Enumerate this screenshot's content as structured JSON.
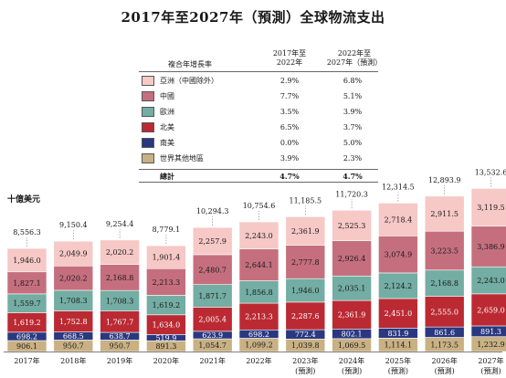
{
  "title": "2017年至2027年（預測）全球物流支出",
  "unit_label": "十億美元",
  "cagr_table": {
    "header_label": "複合年增長率",
    "col1_header": [
      "2017年至",
      "2022年"
    ],
    "col2_header": [
      "2022年至",
      "2027年（預測）"
    ],
    "rows": [
      {
        "label": "亞洲（中國除外）",
        "v1": "2.9%",
        "v2": "6.8%",
        "color": "#f6c8c6"
      },
      {
        "label": "中國",
        "v1": "7.7%",
        "v2": "5.1%",
        "color": "#c56f7e"
      },
      {
        "label": "歐洲",
        "v1": "3.5%",
        "v2": "3.9%",
        "color": "#73ada3"
      },
      {
        "label": "北美",
        "v1": "6.5%",
        "v2": "3.7%",
        "color": "#bb2a33"
      },
      {
        "label": "南美",
        "v1": "0.0%",
        "v2": "5.0%",
        "color": "#2a3880"
      },
      {
        "label": "世界其他地區",
        "v1": "3.9%",
        "v2": "2.3%",
        "color": "#c9b184"
      }
    ],
    "total": {
      "label": "總計",
      "v1": "4.7%",
      "v2": "4.7%"
    }
  },
  "chart_data": {
    "type": "bar",
    "stacked": true,
    "categories": [
      "2017年",
      "2018年",
      "2019年",
      "2020年",
      "2021年",
      "2022年",
      "2023年",
      "2024年",
      "2025年",
      "2026年",
      "2027年"
    ],
    "category_sublabels": [
      "",
      "",
      "",
      "",
      "",
      "",
      "(預測)",
      "(預測)",
      "(預測)",
      "(預測)",
      "(預測)"
    ],
    "totals": [
      8556.3,
      9150.4,
      9254.4,
      8779.1,
      10294.3,
      10754.6,
      11185.5,
      11720.3,
      12314.5,
      12893.9,
      13532.6
    ],
    "totals_labels": [
      "8,556.3",
      "9,150.4",
      "9,254.4",
      "8,779.1",
      "10,294.3",
      "10,754.6",
      "11,185.5",
      "11,720.3",
      "12,314.5",
      "12,893.9",
      "13,532.6"
    ],
    "series": [
      {
        "name": "世界其他地區",
        "color": "#c9b184",
        "text_color": "#1a1a1a",
        "values": [
          906.1,
          950.7,
          950.7,
          891.3,
          1054.7,
          1099.2,
          1039.8,
          1069.5,
          1114.1,
          1173.5,
          1232.9
        ],
        "labels": [
          "906.1",
          "950.7",
          "950.7",
          "891.3",
          "1,054.7",
          "1,099.2",
          "1,039.8",
          "1,069.5",
          "1,114.1",
          "1,173.5",
          "1,232.9"
        ]
      },
      {
        "name": "南美",
        "color": "#2a3880",
        "text_color": "#ffffff",
        "values": [
          698.2,
          668.5,
          638.7,
          519.9,
          623.9,
          698.2,
          772.4,
          802.1,
          831.9,
          861.6,
          891.3
        ],
        "labels": [
          "698.2",
          "668.5",
          "638.7",
          "519.9",
          "623.9",
          "698.2",
          "772.4",
          "802.1",
          "831.9",
          "861.6",
          "891.3"
        ]
      },
      {
        "name": "北美",
        "color": "#bb2a33",
        "text_color": "#ffffff",
        "values": [
          1619.2,
          1752.8,
          1767.7,
          1634.0,
          2005.4,
          2213.3,
          2287.6,
          2361.9,
          2451.0,
          2555.0,
          2659.0
        ],
        "labels": [
          "1,619.2",
          "1,752.8",
          "1,767.7",
          "1,634.0",
          "2,005.4",
          "2,213.3",
          "2,287.6",
          "2,361.9",
          "2,451.0",
          "2,555.0",
          "2,659.0"
        ]
      },
      {
        "name": "歐洲",
        "color": "#73ada3",
        "text_color": "#1a1a1a",
        "values": [
          1559.7,
          1708.3,
          1708.3,
          1619.2,
          1871.7,
          1856.8,
          1946.0,
          2035.1,
          2124.2,
          2168.8,
          2243.0
        ],
        "labels": [
          "1,559.7",
          "1,708.3",
          "1,708.3",
          "1,619.2",
          "1,871.7",
          "1,856.8",
          "1,946.0",
          "2,035.1",
          "2,124.2",
          "2,168.8",
          "2,243.0"
        ]
      },
      {
        "name": "中國",
        "color": "#c56f7e",
        "text_color": "#1a1a1a",
        "values": [
          1827.1,
          2020.2,
          2168.8,
          2213.3,
          2480.7,
          2644.1,
          2777.8,
          2926.4,
          3074.9,
          3223.5,
          3386.9
        ],
        "labels": [
          "1,827.1",
          "2,020.2",
          "2,168.8",
          "2,213.3",
          "2,480.7",
          "2,644.1",
          "2,777.8",
          "2,926.4",
          "3,074.9",
          "3,223.5",
          "3,386.9"
        ]
      },
      {
        "name": "亞洲（中國除外）",
        "color": "#f6c8c6",
        "text_color": "#1a1a1a",
        "values": [
          1946.0,
          2049.9,
          2020.2,
          1901.4,
          2257.9,
          2243.0,
          2361.9,
          2525.3,
          2718.4,
          2911.5,
          3119.5
        ],
        "labels": [
          "1,946.0",
          "2,049.9",
          "2,020.2",
          "1,901.4",
          "2,257.9",
          "2,243.0",
          "2,361.9",
          "2,525.3",
          "2,718.4",
          "2,911.5",
          "3,119.5"
        ]
      }
    ],
    "ylim": [
      0,
      13600
    ]
  }
}
